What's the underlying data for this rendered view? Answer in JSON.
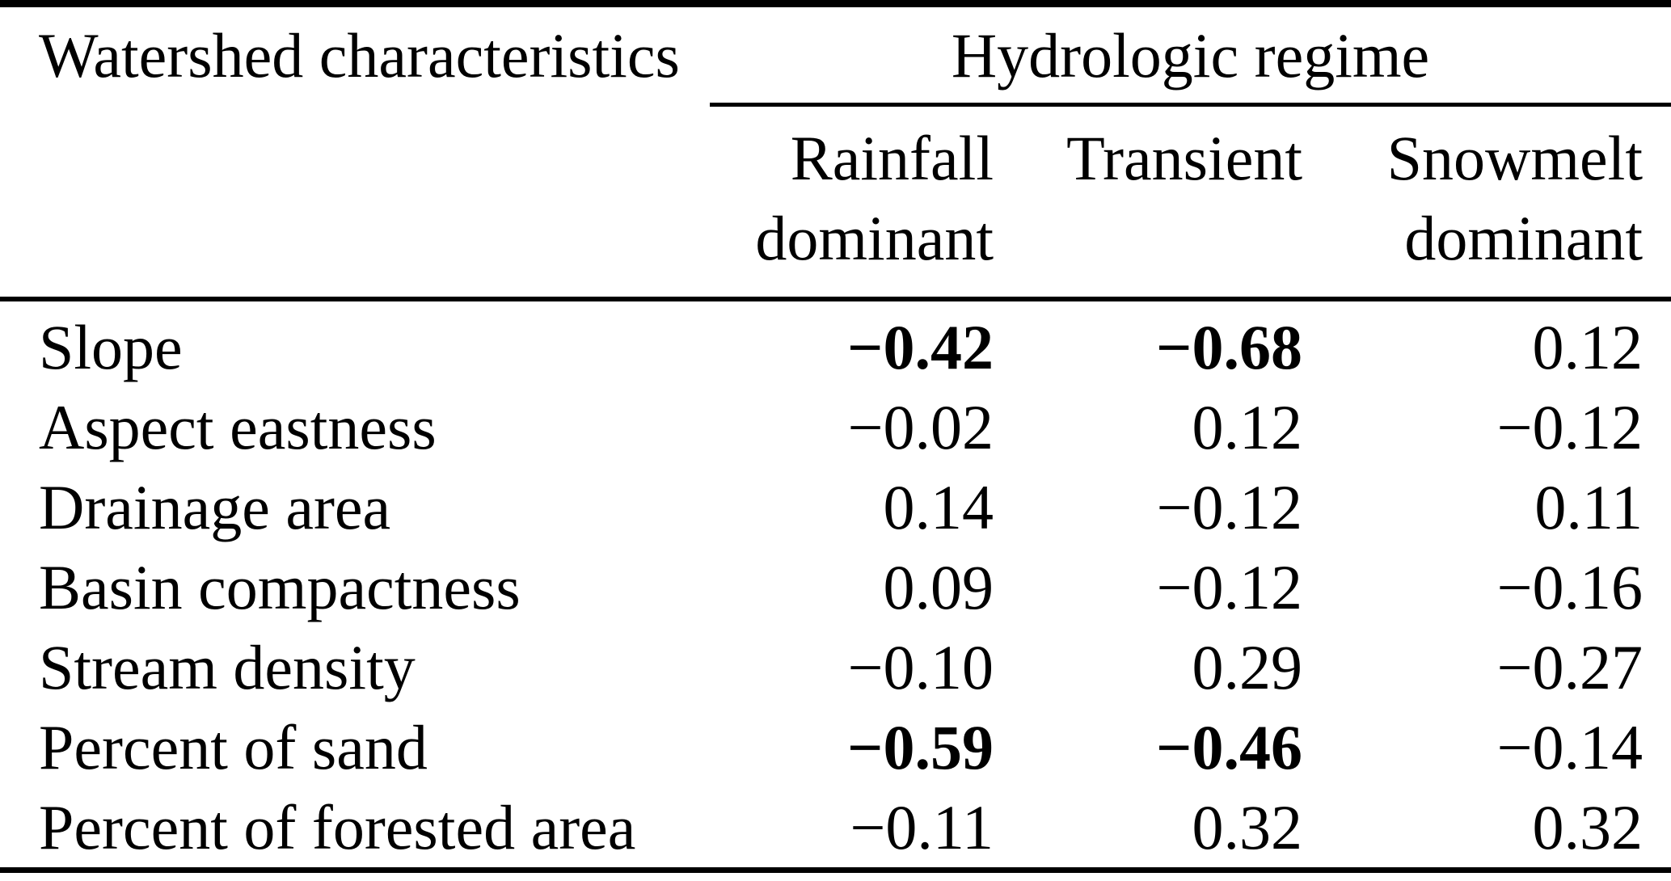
{
  "table": {
    "corner_header": "Watershed characteristics",
    "spanner": "Hydrologic regime",
    "columns": [
      {
        "line1": "Rainfall",
        "line2": "dominant"
      },
      {
        "line1": "Transient",
        "line2": ""
      },
      {
        "line1": "Snowmelt",
        "line2": "dominant"
      }
    ],
    "rows": [
      {
        "label": "Slope",
        "values": [
          {
            "text": "−0.42",
            "bold": true
          },
          {
            "text": "−0.68",
            "bold": true
          },
          {
            "text": "0.12",
            "bold": false
          }
        ]
      },
      {
        "label": "Aspect eastness",
        "values": [
          {
            "text": "−0.02",
            "bold": false
          },
          {
            "text": "0.12",
            "bold": false
          },
          {
            "text": "−0.12",
            "bold": false
          }
        ]
      },
      {
        "label": "Drainage area",
        "values": [
          {
            "text": "0.14",
            "bold": false
          },
          {
            "text": "−0.12",
            "bold": false
          },
          {
            "text": "0.11",
            "bold": false
          }
        ]
      },
      {
        "label": "Basin compactness",
        "values": [
          {
            "text": "0.09",
            "bold": false
          },
          {
            "text": "−0.12",
            "bold": false
          },
          {
            "text": "−0.16",
            "bold": false
          }
        ]
      },
      {
        "label": "Stream density",
        "values": [
          {
            "text": "−0.10",
            "bold": false
          },
          {
            "text": "0.29",
            "bold": false
          },
          {
            "text": "−0.27",
            "bold": false
          }
        ]
      },
      {
        "label": "Percent of sand",
        "values": [
          {
            "text": "−0.59",
            "bold": true
          },
          {
            "text": "−0.46",
            "bold": true
          },
          {
            "text": "−0.14",
            "bold": false
          }
        ]
      },
      {
        "label": "Percent of forested area",
        "values": [
          {
            "text": "−0.11",
            "bold": false
          },
          {
            "text": "0.32",
            "bold": false
          },
          {
            "text": "0.32",
            "bold": false
          }
        ]
      }
    ],
    "colors": {
      "text": "#000000",
      "background": "#ffffff",
      "rule": "#000000"
    }
  }
}
